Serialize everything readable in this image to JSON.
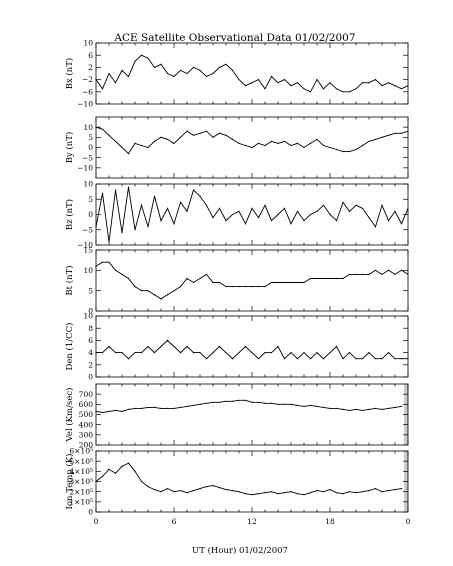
{
  "title": "ACE Satellite Observational Data  01/02/2007",
  "chart_data": {
    "type": "line",
    "title": "ACE Satellite Observational Data  01/02/2007",
    "xlabel": "UT (Hour)  01/02/2007",
    "x_ticks": [
      "0",
      "6",
      "12",
      "18",
      "0"
    ],
    "xlim": [
      0,
      24
    ],
    "line_color": "#000000",
    "no_data_shading": "#c8c8c8",
    "panels": [
      {
        "ylabel": "Bx (nT)",
        "ylim": [
          -10,
          10
        ],
        "yticks": [
          -10,
          -6,
          -2,
          2,
          6,
          10
        ],
        "ytick_labels": [
          "−10",
          "−6",
          "−2",
          "2",
          "6",
          "10"
        ],
        "x": [
          0,
          0.5,
          1,
          1.5,
          2,
          2.5,
          3,
          3.5,
          4,
          4.5,
          5,
          5.5,
          6,
          6.5,
          7,
          7.5,
          8,
          8.5,
          9,
          9.5,
          10,
          10.5,
          11,
          11.5,
          12,
          12.5,
          13,
          13.5,
          14,
          14.5,
          15,
          15.5,
          16,
          16.5,
          17,
          17.5,
          18,
          18.5,
          19,
          19.5,
          20,
          20.5,
          21,
          21.5,
          22,
          22.5,
          23,
          23.5,
          24
        ],
        "values": [
          -2,
          -5,
          0,
          -3,
          1,
          -1,
          4,
          6,
          5,
          2,
          3,
          0,
          -1,
          1,
          0,
          2,
          1,
          -1,
          0,
          2,
          3,
          1,
          -2,
          -4,
          -3,
          -2,
          -5,
          -1,
          -3,
          -2,
          -4,
          -3,
          -5,
          -6,
          -2,
          -5,
          -3,
          -5,
          -6,
          -6,
          -5,
          -3,
          -3,
          -2,
          -4,
          -3,
          -4,
          -5,
          -4
        ]
      },
      {
        "ylabel": "By (nT)",
        "ylim": [
          -15,
          15
        ],
        "yticks": [
          -10,
          -5,
          0,
          5,
          10
        ],
        "ytick_labels": [
          "−10",
          "−5",
          "0",
          "5",
          "10"
        ],
        "x": [
          0,
          0.5,
          1,
          1.5,
          2,
          2.5,
          3,
          3.5,
          4,
          4.5,
          5,
          5.5,
          6,
          6.5,
          7,
          7.5,
          8,
          8.5,
          9,
          9.5,
          10,
          10.5,
          11,
          11.5,
          12,
          12.5,
          13,
          13.5,
          14,
          14.5,
          15,
          15.5,
          16,
          16.5,
          17,
          17.5,
          18,
          18.5,
          19,
          19.5,
          20,
          20.5,
          21,
          21.5,
          22,
          22.5,
          23,
          23.5,
          24
        ],
        "values": [
          10,
          9,
          6,
          3,
          0,
          -3,
          2,
          1,
          0,
          3,
          5,
          4,
          2,
          5,
          8,
          6,
          7,
          8,
          5,
          7,
          6,
          4,
          2,
          1,
          0,
          2,
          1,
          3,
          2,
          3,
          1,
          2,
          0,
          2,
          4,
          1,
          0,
          -1,
          -2,
          -2,
          -1,
          1,
          3,
          4,
          5,
          6,
          7,
          7,
          8
        ]
      },
      {
        "ylabel": "Bz (nT)",
        "ylim": [
          -10,
          10
        ],
        "yticks": [
          -10,
          -5,
          0,
          5,
          10
        ],
        "ytick_labels": [
          "−10",
          "−5",
          "0",
          "5",
          "10"
        ],
        "x": [
          0,
          0.5,
          1,
          1.5,
          2,
          2.5,
          3,
          3.5,
          4,
          4.5,
          5,
          5.5,
          6,
          6.5,
          7,
          7.5,
          8,
          8.5,
          9,
          9.5,
          10,
          10.5,
          11,
          11.5,
          12,
          12.5,
          13,
          13.5,
          14,
          14.5,
          15,
          15.5,
          16,
          16.5,
          17,
          17.5,
          18,
          18.5,
          19,
          19.5,
          20,
          20.5,
          21,
          21.5,
          22,
          22.5,
          23,
          23.5,
          24
        ],
        "values": [
          -4,
          7,
          -9,
          8,
          -6,
          9,
          -5,
          3,
          -4,
          6,
          -2,
          2,
          -3,
          4,
          1,
          8,
          6,
          3,
          -1,
          2,
          -2,
          0,
          1,
          -3,
          2,
          -1,
          3,
          -2,
          0,
          2,
          -3,
          1,
          -2,
          0,
          1,
          3,
          0,
          -2,
          4,
          1,
          3,
          2,
          -1,
          -4,
          3,
          -2,
          1,
          -3,
          2
        ]
      },
      {
        "ylabel": "Bt (nT)",
        "ylim": [
          0,
          15
        ],
        "yticks": [
          0,
          5,
          10,
          15
        ],
        "ytick_labels": [
          "0",
          "5",
          "10",
          "15"
        ],
        "x": [
          0,
          0.5,
          1,
          1.5,
          2,
          2.5,
          3,
          3.5,
          4,
          4.5,
          5,
          5.5,
          6,
          6.5,
          7,
          7.5,
          8,
          8.5,
          9,
          9.5,
          10,
          10.5,
          11,
          11.5,
          12,
          12.5,
          13,
          13.5,
          14,
          14.5,
          15,
          15.5,
          16,
          16.5,
          17,
          17.5,
          18,
          18.5,
          19,
          19.5,
          20,
          20.5,
          21,
          21.5,
          22,
          22.5,
          23,
          23.5,
          24
        ],
        "values": [
          11,
          12,
          12,
          10,
          9,
          8,
          6,
          5,
          5,
          4,
          3,
          4,
          5,
          6,
          8,
          7,
          8,
          9,
          7,
          7,
          6,
          6,
          6,
          6,
          6,
          6,
          6,
          7,
          7,
          7,
          7,
          7,
          7,
          8,
          8,
          8,
          8,
          8,
          8,
          9,
          9,
          9,
          9,
          10,
          9,
          10,
          9,
          10,
          9
        ]
      },
      {
        "ylabel": "Den (1/CC)",
        "ylim": [
          0,
          10
        ],
        "yticks": [
          0,
          2,
          4,
          6,
          8,
          10
        ],
        "ytick_labels": [
          "0",
          "2",
          "4",
          "6",
          "8",
          "10"
        ],
        "x": [
          0,
          0.5,
          1,
          1.5,
          2,
          2.5,
          3,
          3.5,
          4,
          4.5,
          5,
          5.5,
          6,
          6.5,
          7,
          7.5,
          8,
          8.5,
          9,
          9.5,
          10,
          10.5,
          11,
          11.5,
          12,
          12.5,
          13,
          13.5,
          14,
          14.5,
          15,
          15.5,
          16,
          16.5,
          17,
          17.5,
          18,
          18.5,
          19,
          19.5,
          20,
          20.5,
          21,
          21.5,
          22,
          22.5,
          23,
          23.5,
          24
        ],
        "values": [
          4,
          4,
          5,
          4,
          4,
          3,
          4,
          4,
          5,
          4,
          5,
          6,
          5,
          4,
          5,
          4,
          4,
          3,
          4,
          5,
          4,
          3,
          4,
          5,
          4,
          3,
          4,
          4,
          5,
          3,
          4,
          3,
          4,
          3,
          4,
          3,
          4,
          5,
          3,
          4,
          3,
          3,
          4,
          3,
          3,
          4,
          3,
          3,
          3
        ]
      },
      {
        "ylabel": "Vel (Km/sec)",
        "ylim": [
          200,
          800
        ],
        "yticks": [
          200,
          300,
          400,
          500,
          600,
          700
        ],
        "ytick_labels": [
          "200",
          "300",
          "400",
          "500",
          "600",
          "700"
        ],
        "right_gap_from_hour": 23.7,
        "x": [
          0,
          0.5,
          1,
          1.5,
          2,
          2.5,
          3,
          3.5,
          4,
          4.5,
          5,
          5.5,
          6,
          6.5,
          7,
          7.5,
          8,
          8.5,
          9,
          9.5,
          10,
          10.5,
          11,
          11.5,
          12,
          12.5,
          13,
          13.5,
          14,
          14.5,
          15,
          15.5,
          16,
          16.5,
          17,
          17.5,
          18,
          18.5,
          19,
          19.5,
          20,
          20.5,
          21,
          21.5,
          22,
          22.5,
          23,
          23.5
        ],
        "values": [
          530,
          520,
          530,
          540,
          530,
          550,
          560,
          560,
          570,
          570,
          560,
          560,
          560,
          570,
          580,
          590,
          600,
          610,
          620,
          620,
          630,
          630,
          640,
          640,
          620,
          620,
          610,
          610,
          600,
          600,
          600,
          590,
          580,
          590,
          580,
          570,
          560,
          560,
          550,
          540,
          550,
          540,
          550,
          560,
          550,
          560,
          570,
          580
        ]
      },
      {
        "ylabel": "Ion Temp (K)",
        "ylim": [
          0,
          600000
        ],
        "yticks": [
          0,
          100000,
          200000,
          300000,
          400000,
          500000,
          600000
        ],
        "ytick_labels": [
          "0",
          "1×10⁵",
          "2×10⁵",
          "3×10⁵",
          "4×10⁵",
          "5×10⁵",
          "6×10⁵"
        ],
        "right_gap_from_hour": 23.7,
        "x": [
          0,
          0.5,
          1,
          1.5,
          2,
          2.5,
          3,
          3.5,
          4,
          4.5,
          5,
          5.5,
          6,
          6.5,
          7,
          7.5,
          8,
          8.5,
          9,
          9.5,
          10,
          10.5,
          11,
          11.5,
          12,
          12.5,
          13,
          13.5,
          14,
          14.5,
          15,
          15.5,
          16,
          16.5,
          17,
          17.5,
          18,
          18.5,
          19,
          19.5,
          20,
          20.5,
          21,
          21.5,
          22,
          22.5,
          23,
          23.5
        ],
        "values": [
          300000,
          350000,
          420000,
          380000,
          450000,
          480000,
          400000,
          300000,
          250000,
          220000,
          200000,
          230000,
          200000,
          210000,
          190000,
          210000,
          230000,
          250000,
          260000,
          240000,
          220000,
          210000,
          200000,
          180000,
          170000,
          180000,
          190000,
          200000,
          180000,
          190000,
          200000,
          180000,
          170000,
          190000,
          210000,
          200000,
          220000,
          190000,
          180000,
          200000,
          190000,
          200000,
          210000,
          230000,
          200000,
          210000,
          220000,
          230000
        ]
      }
    ]
  }
}
